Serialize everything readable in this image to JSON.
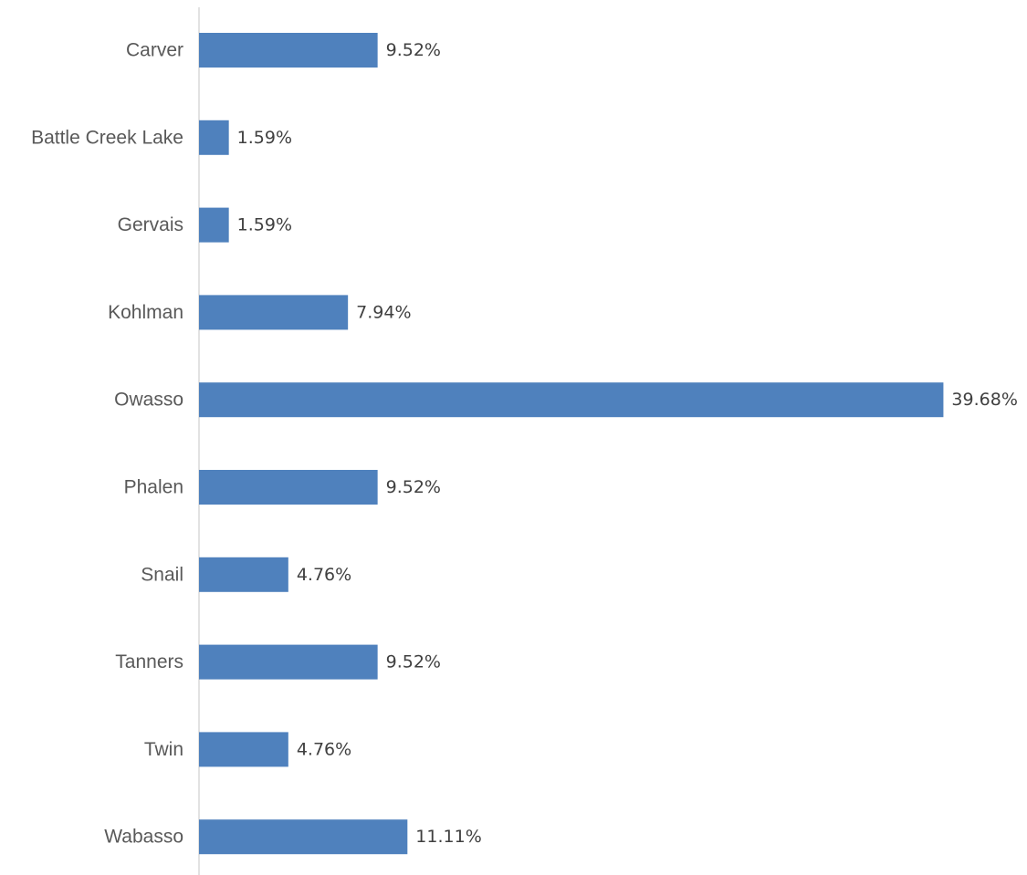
{
  "chart_data": {
    "type": "bar",
    "orientation": "horizontal",
    "title": "",
    "xlabel": "",
    "ylabel": "",
    "categories": [
      "Carver",
      "Battle Creek Lake",
      "Gervais",
      "Kohlman",
      "Owasso",
      "Phalen",
      "Snail",
      "Tanners",
      "Twin",
      "Wabasso"
    ],
    "values": [
      9.52,
      1.59,
      1.59,
      7.94,
      39.68,
      9.52,
      4.76,
      9.52,
      4.76,
      11.11
    ],
    "value_labels": [
      "9.52%",
      "1.59%",
      "1.59%",
      "7.94%",
      "39.68%",
      "9.52%",
      "4.76%",
      "9.52%",
      "4.76%",
      "11.11%"
    ],
    "unit": "%",
    "xlim": [
      0,
      40
    ],
    "grid": false,
    "legend": "none",
    "bar_color": "#4F81BD",
    "axis_color": "#D9D9D9"
  }
}
